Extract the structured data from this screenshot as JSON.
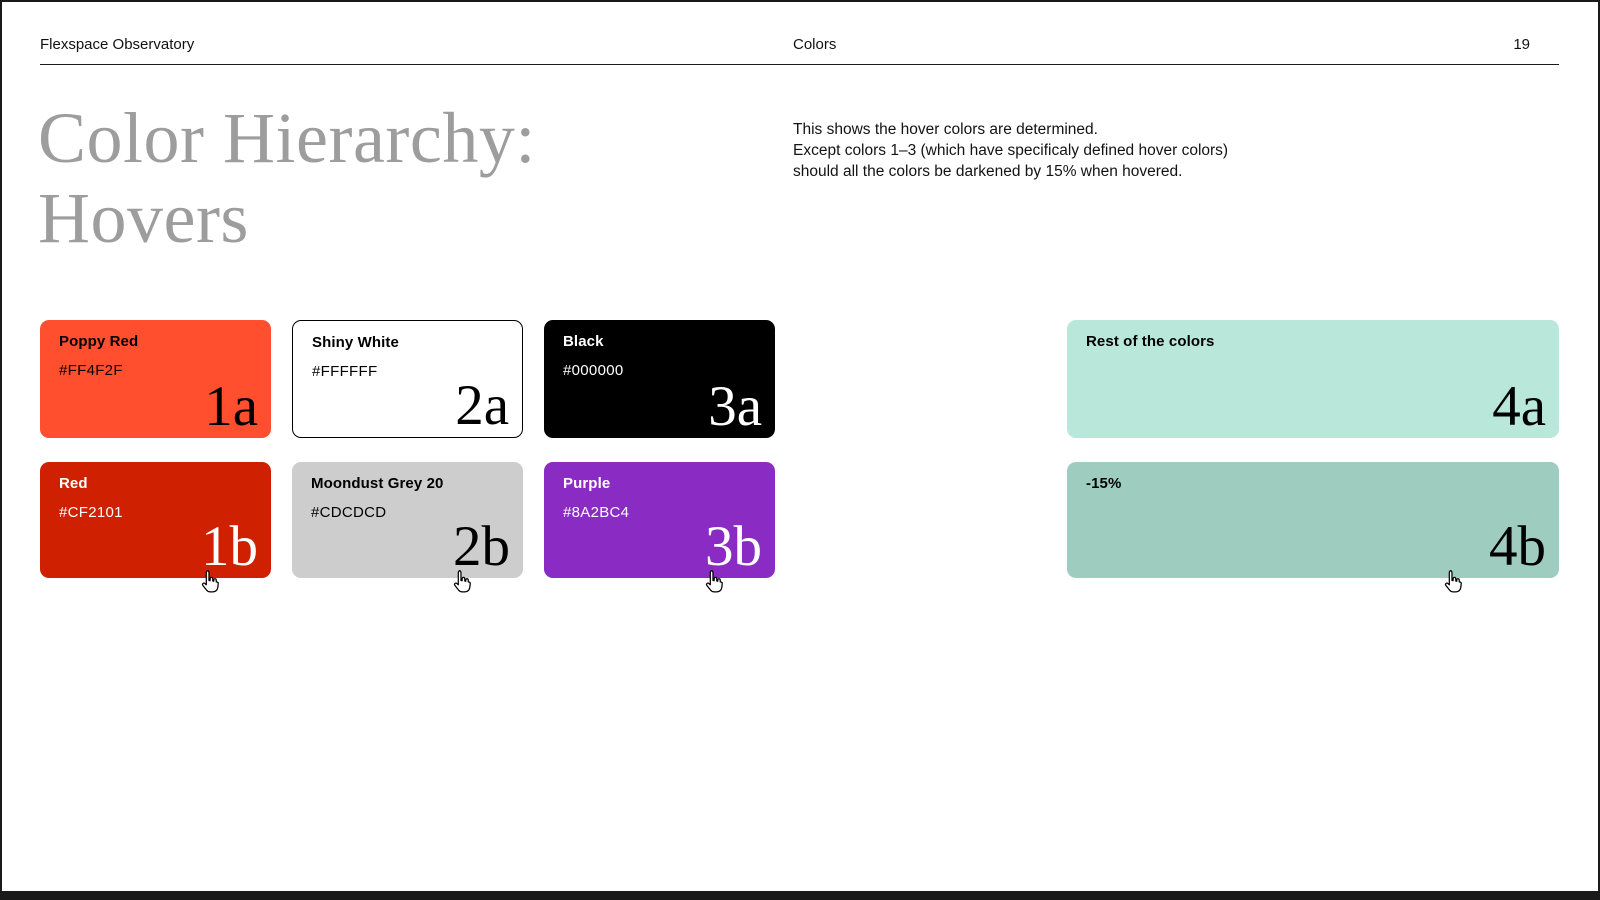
{
  "header": {
    "left": "Flexspace Observatory",
    "center": "Colors",
    "page_number": "19"
  },
  "title": {
    "line1": "Color Hierarchy:",
    "line2": "Hovers"
  },
  "intro": {
    "line1": "This shows the hover colors are determined.",
    "line2": "Except colors 1–3 (which have specificaly defined hover colors)",
    "line3": "should all the colors be darkened by 15% when hovered."
  },
  "colors": {
    "page_background": "#FFFFFF",
    "frame_border": "#1A1A1A",
    "title_grey": "#9D9D9D",
    "mint_light": "#B9E8DB",
    "mint_dark": "#9ECDC0"
  },
  "swatches": {
    "row_a": [
      {
        "id": "1a",
        "name": "Poppy Red",
        "hex": "#FF4F2F",
        "bg": "#FF4F2F",
        "text": "#000000",
        "outlined": false,
        "wide": false,
        "cursor": false
      },
      {
        "id": "2a",
        "name": "Shiny White",
        "hex": "#FFFFFF",
        "bg": "#FFFFFF",
        "text": "#000000",
        "outlined": true,
        "wide": false,
        "cursor": false
      },
      {
        "id": "3a",
        "name": "Black",
        "hex": "#000000",
        "bg": "#000000",
        "text": "#FFFFFF",
        "outlined": false,
        "wide": false,
        "cursor": false
      },
      {
        "id": "4a",
        "name": "Rest of the colors",
        "hex": "",
        "bg": "#B9E8DB",
        "text": "#000000",
        "outlined": false,
        "wide": true,
        "cursor": false
      }
    ],
    "row_b": [
      {
        "id": "1b",
        "name": "Red",
        "hex": "#CF2101",
        "bg": "#CF2101",
        "text": "#FFFFFF",
        "outlined": false,
        "wide": false,
        "cursor": true
      },
      {
        "id": "2b",
        "name": "Moondust Grey 20",
        "hex": "#CDCDCD",
        "bg": "#CDCDCD",
        "text": "#000000",
        "outlined": false,
        "wide": false,
        "cursor": true
      },
      {
        "id": "3b",
        "name": "Purple",
        "hex": "#8A2BC4",
        "bg": "#8A2BC4",
        "text": "#FFFFFF",
        "outlined": false,
        "wide": false,
        "cursor": true
      },
      {
        "id": "4b",
        "name": "-15%",
        "hex": "",
        "bg": "#9ECDC0",
        "text": "#000000",
        "outlined": false,
        "wide": true,
        "cursor": true
      }
    ]
  }
}
